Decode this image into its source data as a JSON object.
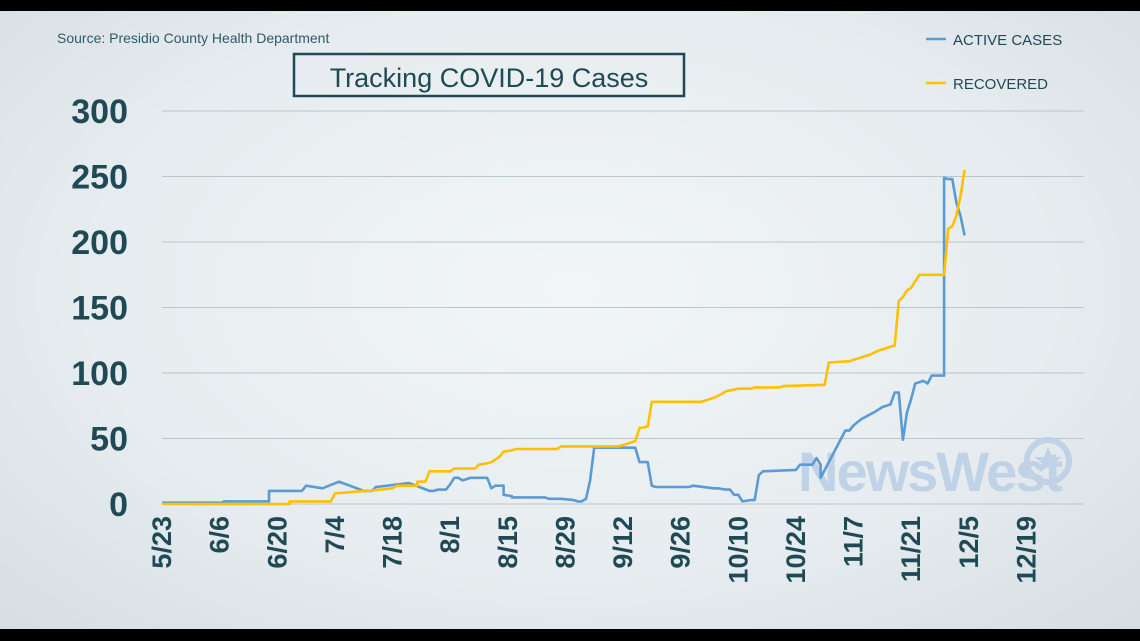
{
  "source": "Source: Presidio County Health Department",
  "title": "Tracking COVID-19 Cases",
  "watermark": "NewsWest",
  "colors": {
    "active": "#5b9bd5",
    "recovered": "#ffc000",
    "text": "#1f4a55",
    "frame": "#1f4a55"
  },
  "chart_data": {
    "type": "line",
    "title": "Tracking COVID-19 Cases",
    "xlabel": "",
    "ylabel": "",
    "ylim": [
      0,
      300
    ],
    "yticks": [
      0,
      50,
      100,
      150,
      200,
      250,
      300
    ],
    "xlim": [
      "5/23",
      "1/2"
    ],
    "xticks": [
      "5/23",
      "6/6",
      "6/20",
      "7/4",
      "7/18",
      "8/1",
      "8/15",
      "8/29",
      "9/12",
      "9/26",
      "10/10",
      "10/24",
      "11/7",
      "11/21",
      "12/5",
      "12/19"
    ],
    "grid": true,
    "legend_position": "top-right",
    "series": [
      {
        "name": "ACTIVE CASES",
        "color": "#5b9bd5",
        "x": [
          "5/23",
          "6/7",
          "6/7",
          "6/18",
          "6/18",
          "6/26",
          "6/27",
          "7/1",
          "7/1",
          "7/5",
          "7/5",
          "7/11",
          "7/13",
          "7/14",
          "7/22",
          "7/22",
          "7/27",
          "7/28",
          "7/29",
          "7/31",
          "8/1",
          "8/1",
          "8/2",
          "8/3",
          "8/4",
          "8/6",
          "8/10",
          "8/11",
          "8/12",
          "8/14",
          "8/14",
          "8/16",
          "8/16",
          "8/24",
          "8/25",
          "8/28",
          "8/31",
          "9/1",
          "9/2",
          "9/3",
          "9/4",
          "9/5",
          "9/15",
          "9/16",
          "9/18",
          "9/19",
          "9/20",
          "9/28",
          "9/29",
          "10/4",
          "10/5",
          "10/7",
          "10/8",
          "10/9",
          "10/10",
          "10/11",
          "10/13",
          "10/14",
          "10/14",
          "10/15",
          "10/16",
          "10/24",
          "10/25",
          "10/28",
          "10/29",
          "10/29",
          "10/30",
          "10/30",
          "11/5",
          "11/6",
          "11/7",
          "11/9",
          "11/12",
          "11/13",
          "11/14",
          "11/16",
          "11/17",
          "11/18",
          "11/19",
          "11/20",
          "11/21",
          "11/22",
          "11/24",
          "11/25",
          "11/26",
          "11/27",
          "11/29",
          "11/29",
          "11/30",
          "12/1",
          "12/2",
          "12/3",
          "12/4"
        ],
        "values": [
          1,
          1,
          2,
          2,
          10,
          10,
          14,
          12,
          12,
          17,
          17,
          10,
          10,
          13,
          16,
          16,
          10,
          10,
          11,
          11,
          15,
          15,
          20,
          20,
          18,
          20,
          20,
          12,
          14,
          14,
          7,
          6,
          5,
          5,
          4,
          4,
          3,
          2,
          2,
          4,
          18,
          43,
          43,
          32,
          32,
          14,
          13,
          13,
          14,
          12,
          12,
          11,
          11,
          7,
          7,
          2,
          3,
          3,
          3,
          22,
          25,
          26,
          30,
          30,
          35,
          35,
          30,
          20,
          56,
          56,
          60,
          65,
          70,
          72,
          74,
          76,
          85,
          85,
          49,
          70,
          80,
          92,
          94,
          92,
          98,
          98,
          98,
          249,
          248,
          248,
          230,
          220,
          205
        ]
      },
      {
        "name": "RECOVERED",
        "color": "#ffc000",
        "x": [
          "5/23",
          "6/23",
          "6/23",
          "7/3",
          "7/4",
          "7/11",
          "7/12",
          "7/18",
          "7/19",
          "7/24",
          "7/24",
          "7/26",
          "7/27",
          "8/1",
          "8/2",
          "8/7",
          "8/8",
          "8/10",
          "8/11",
          "8/13",
          "8/14",
          "8/16",
          "8/17",
          "8/27",
          "8/28",
          "9/8",
          "9/11",
          "9/15",
          "9/16",
          "9/18",
          "9/19",
          "10/1",
          "10/2",
          "10/3",
          "10/4",
          "10/6",
          "10/7",
          "10/10",
          "10/13",
          "10/14",
          "10/20",
          "10/21",
          "10/31",
          "11/1",
          "11/6",
          "11/7",
          "11/9",
          "11/10",
          "11/11",
          "11/13",
          "11/14",
          "11/16",
          "11/17",
          "11/18",
          "11/19",
          "11/20",
          "11/21",
          "11/22",
          "11/23",
          "11/29",
          "11/30",
          "12/1",
          "12/2",
          "12/3",
          "12/4"
        ],
        "values": [
          0,
          0,
          2,
          2,
          8,
          10,
          10,
          12,
          14,
          14,
          17,
          17,
          25,
          25,
          27,
          27,
          30,
          31,
          32,
          36,
          40,
          41,
          42,
          42,
          44,
          44,
          44,
          48,
          58,
          59,
          78,
          78,
          79,
          80,
          81,
          84,
          86,
          88,
          88,
          89,
          89,
          90,
          91,
          108,
          109,
          110,
          112,
          113,
          114,
          117,
          118,
          120,
          121,
          155,
          158,
          163,
          165,
          170,
          175,
          175,
          210,
          212,
          220,
          235,
          255
        ]
      }
    ]
  }
}
